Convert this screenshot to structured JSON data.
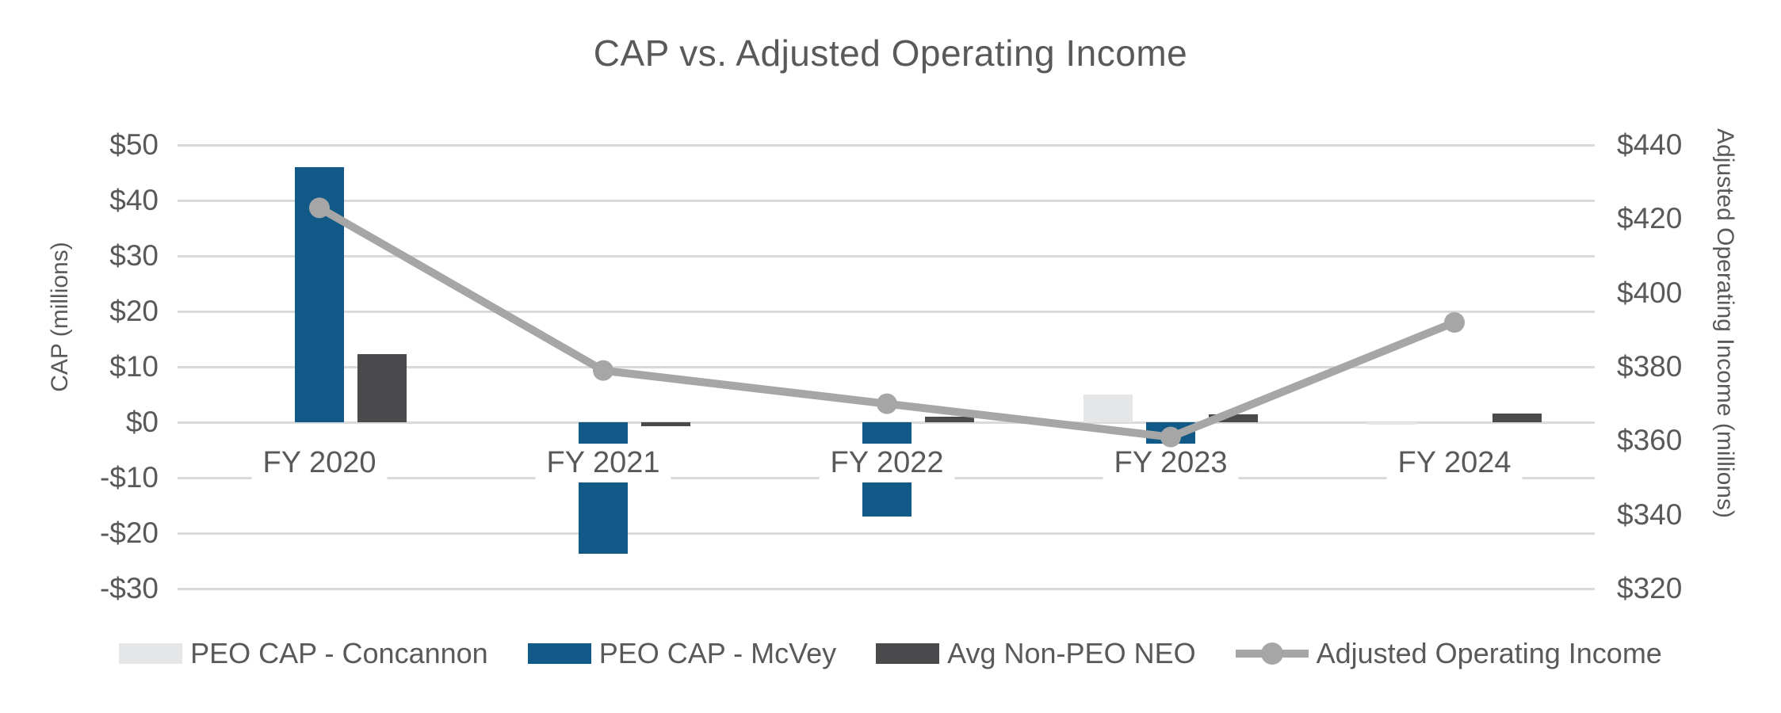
{
  "title": "CAP vs. Adjusted Operating Income",
  "colors": {
    "bar_concannon": "#e4e6e7",
    "bar_mcvey": "#115a87",
    "bar_neo": "#4a4a4c",
    "line_aoi": "#a6a6a6",
    "gridline": "#dadada",
    "text": "#595959",
    "background": "#ffffff"
  },
  "chart_data": {
    "type": "bar",
    "subtype": "combo-bar-line-dual-axis",
    "title": "CAP vs. Adjusted Operating Income",
    "categories": [
      "FY 2020",
      "FY 2021",
      "FY 2022",
      "FY 2023",
      "FY 2024"
    ],
    "series": [
      {
        "name": "PEO CAP - Concannon",
        "type": "bar",
        "axis": "left",
        "color": "#e4e6e7",
        "values": [
          0,
          0,
          0,
          5,
          -0.4
        ]
      },
      {
        "name": "PEO CAP - McVey",
        "type": "bar",
        "axis": "left",
        "color": "#115a87",
        "values": [
          46,
          -23.7,
          -17,
          -4.3,
          0
        ]
      },
      {
        "name": "Avg Non-PEO NEO",
        "type": "bar",
        "axis": "left",
        "color": "#4a4a4c",
        "values": [
          12.3,
          -0.7,
          1,
          1.4,
          1.6
        ]
      },
      {
        "name": "Adjusted Operating Income",
        "type": "line",
        "axis": "right",
        "color": "#a6a6a6",
        "values": [
          423,
          379,
          370,
          361,
          392
        ]
      }
    ],
    "left_axis": {
      "title": "CAP (millions)",
      "min": -30,
      "max": 50,
      "step": 10,
      "tick_values": [
        50,
        40,
        30,
        20,
        10,
        0,
        -10,
        -20,
        -30
      ],
      "tick_labels": [
        "$50",
        "$40",
        "$30",
        "$20",
        "$10",
        "$0",
        "-$10",
        "-$20",
        "-$30"
      ]
    },
    "right_axis": {
      "title": "Adjusted Operating Income (millions)",
      "min": 320,
      "max": 440,
      "step": 20,
      "tick_values": [
        440,
        420,
        400,
        380,
        360,
        340,
        320
      ],
      "tick_labels": [
        "$440",
        "$420",
        "$400",
        "$380",
        "$360",
        "$340",
        "$320"
      ]
    },
    "grid": "horizontal",
    "legend_position": "bottom"
  }
}
